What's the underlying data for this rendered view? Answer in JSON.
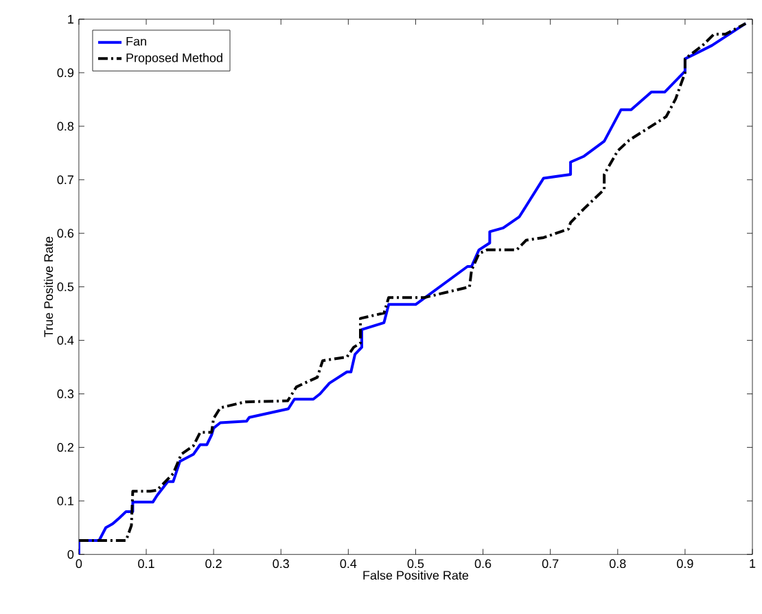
{
  "chart_data": {
    "type": "line",
    "xlabel": "False Positive Rate",
    "ylabel": "True  Positive Rate",
    "xlim": [
      0,
      1
    ],
    "ylim": [
      0,
      1
    ],
    "xticks": [
      0,
      0.1,
      0.2,
      0.3,
      0.4,
      0.5,
      0.6,
      0.7,
      0.8,
      0.9,
      1
    ],
    "yticks": [
      0,
      0.1,
      0.2,
      0.3,
      0.4,
      0.5,
      0.6,
      0.7,
      0.8,
      0.9,
      1
    ],
    "grid": false,
    "legend": "top left",
    "marker": "none",
    "series": [
      {
        "name": "Fan",
        "color": "#0000ff",
        "line_style": "solid",
        "x": [
          0,
          0,
          0.03,
          0.04,
          0.05,
          0.06,
          0.07,
          0.08,
          0.08,
          0.11,
          0.116,
          0.132,
          0.14,
          0.15,
          0.17,
          0.18,
          0.19,
          0.197,
          0.2,
          0.21,
          0.249,
          0.253,
          0.311,
          0.32,
          0.348,
          0.358,
          0.372,
          0.398,
          0.404,
          0.41,
          0.42,
          0.42,
          0.453,
          0.46,
          0.5,
          0.577,
          0.583,
          0.594,
          0.61,
          0.61,
          0.63,
          0.654,
          0.664,
          0.69,
          0.73,
          0.73,
          0.75,
          0.78,
          0.805,
          0.82,
          0.85,
          0.87,
          0.9,
          0.9,
          0.94,
          0.99
        ],
        "values": [
          0,
          0.026,
          0.026,
          0.05,
          0.057,
          0.068,
          0.08,
          0.08,
          0.098,
          0.098,
          0.11,
          0.136,
          0.136,
          0.174,
          0.187,
          0.205,
          0.205,
          0.223,
          0.236,
          0.246,
          0.249,
          0.256,
          0.272,
          0.29,
          0.29,
          0.3,
          0.32,
          0.341,
          0.341,
          0.374,
          0.387,
          0.42,
          0.433,
          0.467,
          0.467,
          0.538,
          0.538,
          0.569,
          0.582,
          0.603,
          0.61,
          0.631,
          0.651,
          0.703,
          0.71,
          0.733,
          0.744,
          0.772,
          0.831,
          0.831,
          0.864,
          0.864,
          0.903,
          0.926,
          0.951,
          0.992
        ]
      },
      {
        "name": "Proposed Method",
        "color": "#000000",
        "line_style": "dashdot",
        "x": [
          0,
          0.07,
          0.078,
          0.08,
          0.106,
          0.116,
          0.14,
          0.152,
          0.17,
          0.18,
          0.197,
          0.2,
          0.21,
          0.247,
          0.31,
          0.323,
          0.354,
          0.362,
          0.398,
          0.408,
          0.418,
          0.418,
          0.453,
          0.46,
          0.513,
          0.58,
          0.583,
          0.594,
          0.606,
          0.65,
          0.664,
          0.69,
          0.727,
          0.73,
          0.75,
          0.78,
          0.78,
          0.8,
          0.817,
          0.846,
          0.872,
          0.886,
          0.9,
          0.9,
          0.926,
          0.943,
          0.96,
          0.99
        ],
        "values": [
          0.026,
          0.026,
          0.054,
          0.118,
          0.118,
          0.12,
          0.151,
          0.187,
          0.203,
          0.228,
          0.228,
          0.254,
          0.274,
          0.285,
          0.287,
          0.313,
          0.331,
          0.362,
          0.369,
          0.387,
          0.395,
          0.441,
          0.451,
          0.48,
          0.48,
          0.5,
          0.531,
          0.562,
          0.569,
          0.569,
          0.587,
          0.592,
          0.608,
          0.62,
          0.646,
          0.682,
          0.71,
          0.754,
          0.774,
          0.797,
          0.818,
          0.851,
          0.9,
          0.926,
          0.951,
          0.972,
          0.972,
          0.992
        ]
      }
    ]
  }
}
